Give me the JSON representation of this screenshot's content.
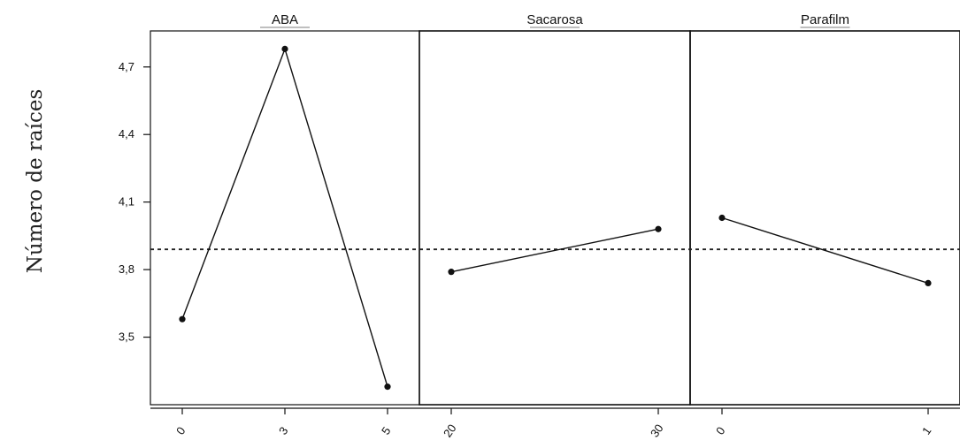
{
  "chart_data": {
    "type": "line",
    "ylabel": "Número de raíces",
    "ylim": [
      3.2,
      4.86
    ],
    "yticks": [
      3.5,
      3.8,
      4.1,
      4.4,
      4.7
    ],
    "ytick_labels": [
      "3,5",
      "3,8",
      "4,1",
      "4,4",
      "4,7"
    ],
    "reference_line": 3.89,
    "reference_style": "dotted",
    "grid": false,
    "panels": [
      {
        "title": "ABA",
        "categories": [
          "0",
          "3",
          "5"
        ],
        "values": [
          3.58,
          4.78,
          3.28
        ]
      },
      {
        "title": "Sacarosa",
        "categories": [
          "20",
          "30"
        ],
        "values": [
          3.79,
          3.98
        ]
      },
      {
        "title": "Parafilm",
        "categories": [
          "0",
          "1"
        ],
        "values": [
          4.03,
          3.74
        ]
      }
    ]
  }
}
